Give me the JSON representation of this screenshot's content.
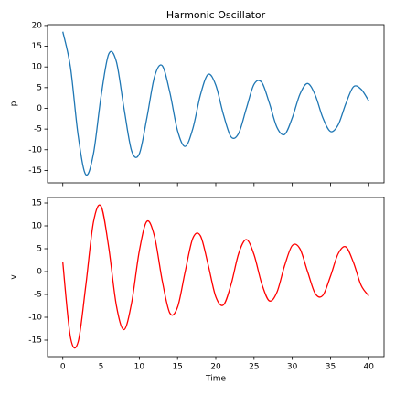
{
  "chart_data": [
    {
      "type": "line",
      "title": "Harmonic Oscillator",
      "ylabel": "p",
      "x": [
        0,
        1,
        2,
        3,
        4,
        5,
        6,
        7,
        8,
        9,
        10,
        11,
        12,
        13,
        14,
        15,
        16,
        17,
        18,
        19,
        20,
        21,
        22,
        23,
        24,
        25,
        26,
        27,
        28,
        29,
        30,
        31,
        32,
        33,
        34,
        35,
        36,
        37,
        38,
        39,
        40
      ],
      "series": [
        {
          "name": "p",
          "color": "#1f77b4",
          "values": [
            18.5,
            9.9,
            -6.5,
            -16.0,
            -11.0,
            2.9,
            13.1,
            11.3,
            0.0,
            -10.3,
            -11.0,
            -2.2,
            7.7,
            10.3,
            3.8,
            -5.4,
            -9.2,
            -4.9,
            3.3,
            8.2,
            5.6,
            -1.5,
            -6.9,
            -6.0,
            0.0,
            5.8,
            6.3,
            1.3,
            -4.6,
            -6.3,
            -2.3,
            3.4,
            6.0,
            3.2,
            -2.3,
            -5.6,
            -4.0,
            1.1,
            5.2,
            4.6,
            1.8
          ]
        }
      ],
      "xlim": [
        -2,
        42
      ],
      "ylim": [
        -18,
        20.2
      ],
      "yticks": [
        -15,
        -10,
        -5,
        0,
        5,
        10,
        15,
        20
      ]
    },
    {
      "type": "line",
      "xlabel": "Time",
      "ylabel": "v",
      "x": [
        0,
        1,
        2,
        3,
        4,
        5,
        6,
        7,
        8,
        9,
        10,
        11,
        12,
        13,
        14,
        15,
        16,
        17,
        18,
        19,
        20,
        21,
        22,
        23,
        24,
        25,
        26,
        27,
        28,
        29,
        30,
        31,
        32,
        33,
        34,
        35,
        36,
        37,
        38,
        39,
        40
      ],
      "series": [
        {
          "name": "v",
          "color": "#ff0000",
          "values": [
            2.0,
            -14.4,
            -15.4,
            -3.1,
            10.8,
            14.3,
            5.3,
            -7.4,
            -12.7,
            -6.8,
            4.5,
            11.0,
            7.6,
            -2.0,
            -9.1,
            -7.8,
            0.0,
            7.3,
            7.8,
            1.5,
            -5.5,
            -7.3,
            -2.8,
            4.0,
            7.0,
            3.7,
            -2.6,
            -6.4,
            -4.5,
            1.3,
            5.7,
            5.0,
            0.0,
            -4.8,
            -5.2,
            -1.0,
            3.9,
            5.4,
            2.0,
            -3.0,
            -5.3
          ]
        }
      ],
      "xlim": [
        -2,
        42
      ],
      "ylim": [
        -18.6,
        16.2
      ],
      "yticks": [
        -15,
        -10,
        -5,
        0,
        5,
        10,
        15
      ],
      "xticks": [
        0,
        5,
        10,
        15,
        20,
        25,
        30,
        35,
        40
      ]
    }
  ]
}
